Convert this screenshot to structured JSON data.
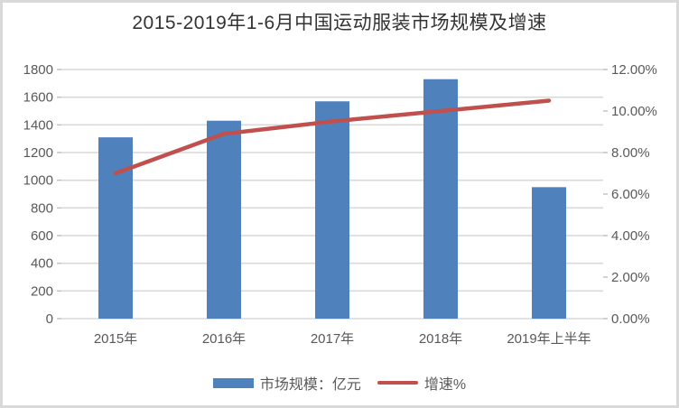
{
  "chart_data": {
    "type": "bar",
    "title": "2015-2019年1-6月中国运动服装市场规模及增速",
    "categories": [
      "2015年",
      "2016年",
      "2017年",
      "2018年",
      "2019年上半年"
    ],
    "series": [
      {
        "name": "市场规模：亿元",
        "type": "bar",
        "y_axis": "left",
        "color": "#4F81BD",
        "values": [
          1310,
          1430,
          1570,
          1730,
          950
        ]
      },
      {
        "name": "增速%",
        "type": "line",
        "y_axis": "right",
        "color": "#C0504D",
        "values": [
          7.0,
          8.9,
          9.5,
          10.0,
          10.5
        ]
      }
    ],
    "left_axis": {
      "min": 0,
      "max": 1800,
      "step": 200,
      "tick_labels": [
        "0",
        "200",
        "400",
        "600",
        "800",
        "1000",
        "1200",
        "1400",
        "1600",
        "1800"
      ]
    },
    "right_axis": {
      "min": 0,
      "max": 12,
      "step": 2,
      "tick_labels": [
        "0.00%",
        "2.00%",
        "4.00%",
        "6.00%",
        "8.00%",
        "10.00%",
        "12.00%"
      ]
    },
    "grid": true,
    "legend_position": "bottom",
    "colors": {
      "bar": "#4F81BD",
      "line": "#C0504D",
      "grid": "#D9D9D9",
      "tick": "#BFBFBF",
      "axis_text": "#595959",
      "title_text": "#333333",
      "frame_border": "#D9D9D9",
      "background": "#FFFFFF"
    }
  }
}
